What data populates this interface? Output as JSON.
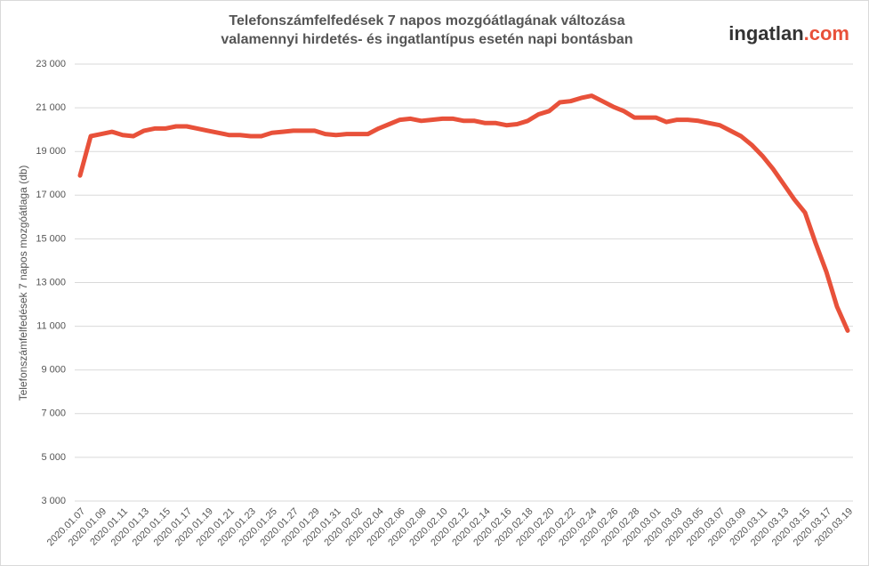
{
  "chart_data": {
    "type": "line",
    "title": [
      "Telefonszámfelfedések 7 napos mozgóátlagának változása",
      "valamennyi hirdetés- és ingatlantípus esetén napi bontásban"
    ],
    "logo": [
      "ingatlan",
      ".com"
    ],
    "y_label": "Telefonszámfelfedések  7 napos  mozgóátlaga  (db)",
    "categories": [
      "2020.01.07",
      null,
      "2020.01.09",
      null,
      "2020.01.11",
      null,
      "2020.01.13",
      null,
      "2020.01.15",
      null,
      "2020.01.17",
      null,
      "2020.01.19",
      null,
      "2020.01.21",
      null,
      "2020.01.23",
      null,
      "2020.01.25",
      null,
      "2020.01.27",
      null,
      "2020.01.29",
      null,
      "2020.01.31",
      null,
      "2020.02.02",
      null,
      "2020.02.04",
      null,
      "2020.02.06",
      null,
      "2020.02.08",
      null,
      "2020.02.10",
      null,
      "2020.02.12",
      null,
      "2020.02.14",
      null,
      "2020.02.16",
      null,
      "2020.02.18",
      null,
      "2020.02.20",
      null,
      "2020.02.22",
      null,
      "2020.02.24",
      null,
      "2020.02.26",
      null,
      "2020.02.28",
      null,
      "2020.03.01",
      null,
      "2020.03.03",
      null,
      "2020.03.05",
      null,
      "2020.03.07",
      null,
      "2020.03.09",
      null,
      "2020.03.11",
      null,
      "2020.03.13",
      null,
      "2020.03.15",
      null,
      "2020.03.17",
      null,
      "2020.03.19"
    ],
    "series": [
      {
        "color": "#e8513a",
        "values": [
          17900,
          19700,
          19800,
          19900,
          19750,
          19700,
          19950,
          20050,
          20050,
          20150,
          20150,
          20050,
          19950,
          19850,
          19750,
          19750,
          19700,
          19700,
          19850,
          19900,
          19950,
          19950,
          19950,
          19800,
          19750,
          19800,
          19800,
          19800,
          20050,
          20250,
          20450,
          20500,
          20400,
          20450,
          20500,
          20500,
          20400,
          20400,
          20300,
          20300,
          20200,
          20250,
          20400,
          20700,
          20850,
          21250,
          21300,
          21450,
          21550,
          21300,
          21050,
          20850,
          20550,
          20550,
          20550,
          20350,
          20450,
          20450,
          20400,
          20300,
          20200,
          19950,
          19700,
          19300,
          18800,
          18200,
          17500,
          16800,
          16200,
          14800,
          13500,
          11900,
          10800
        ]
      }
    ],
    "ylim": [
      3000,
      23000
    ],
    "yticks": [
      {
        "value": 3000,
        "label": "3 000"
      },
      {
        "value": 5000,
        "label": "5 000"
      },
      {
        "value": 7000,
        "label": "7 000"
      },
      {
        "value": 9000,
        "label": "9 000"
      },
      {
        "value": 11000,
        "label": "11 000"
      },
      {
        "value": 13000,
        "label": "13 000"
      },
      {
        "value": 15000,
        "label": "15 000"
      },
      {
        "value": 17000,
        "label": "17 000"
      },
      {
        "value": 19000,
        "label": "19 000"
      },
      {
        "value": 21000,
        "label": "21 000"
      },
      {
        "value": 23000,
        "label": "23 000"
      }
    ],
    "grid": true
  }
}
